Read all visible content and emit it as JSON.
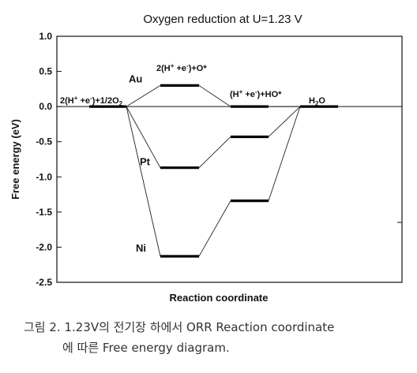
{
  "chart_data": {
    "type": "line",
    "title": "Oxygen reduction at U=1.23 V",
    "xlabel": "Reaction coordinate",
    "ylabel": "Free energy (eV)",
    "ylim": [
      -2.5,
      1.0
    ],
    "yticks": [
      "1.0",
      "0.5",
      "0.0",
      "-0.5",
      "-1.0",
      "-1.5",
      "-2.0",
      "-2.5"
    ],
    "grid": false,
    "x_states": [
      "2(H+ +e-)+1/2O2",
      "2(H+ +e-)+O*",
      "(H+ +e-)+HO*",
      "H2O"
    ],
    "series": [
      {
        "name": "Au",
        "values": [
          0.0,
          0.3,
          0.0,
          0.0
        ]
      },
      {
        "name": "Pt",
        "values": [
          0.0,
          -0.87,
          -0.43,
          0.0
        ]
      },
      {
        "name": "Ni",
        "values": [
          0.0,
          -2.13,
          -1.34,
          0.0
        ]
      }
    ],
    "annotations": {
      "state0": {
        "base": "2(H",
        "sup1": "+",
        "mid": " +e",
        "sup2": "-",
        "end": ")+1/2O",
        "sub": "2"
      },
      "state1": {
        "base": "2(H",
        "sup1": "+",
        "mid": " +e",
        "sup2": "-",
        "end": ")+O*"
      },
      "state2": {
        "base": "(H",
        "sup1": "+",
        "mid": " +e",
        "sup2": "-",
        "end": ")+HO*"
      },
      "state3": {
        "base": "H",
        "sub": "2",
        "end": "O"
      }
    }
  },
  "caption": {
    "line1": "그림 2. 1.23V의 전기장 하에서 ORR Reaction coordinate",
    "line2": "에 따른 Free energy diagram."
  }
}
